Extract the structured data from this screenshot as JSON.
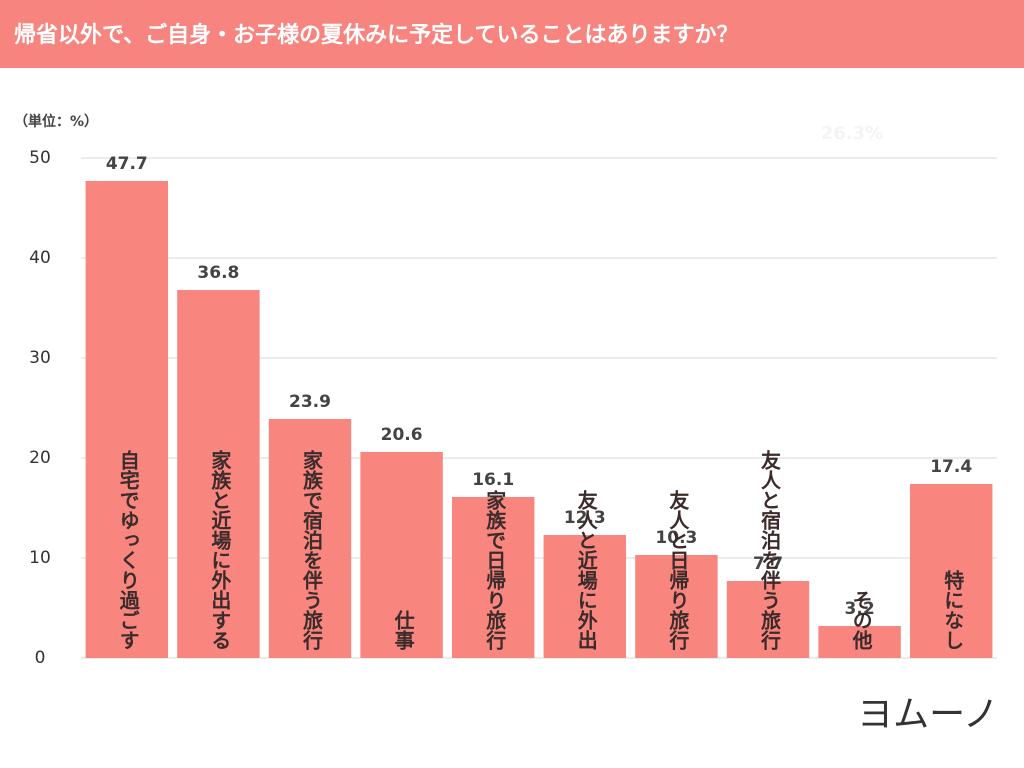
{
  "chart_data": {
    "type": "bar",
    "title": "帰省以外で、ご自身・お子様の夏休みに予定していることはありますか？",
    "y_label": "（単位：%）",
    "annotation": "26.3%",
    "brand": "ヨムーノ",
    "categories": [
      "自宅でゆっくり過ごす",
      "家族と近場に外出する",
      "家族で宿泊を伴う旅行",
      "仕事",
      "家族で日帰り旅行",
      "友人と近場に外出",
      "友人と日帰り旅行",
      "友人と宿泊を伴う旅行",
      "その他",
      "特になし"
    ],
    "values": [
      47.7,
      36.8,
      23.9,
      20.6,
      16.1,
      12.3,
      10.3,
      7.7,
      3.2,
      17.4
    ],
    "color": "#f8867f",
    "ylim": [
      0,
      50
    ],
    "yticks": [
      0,
      10,
      20,
      30,
      40,
      50
    ],
    "grid": true
  }
}
